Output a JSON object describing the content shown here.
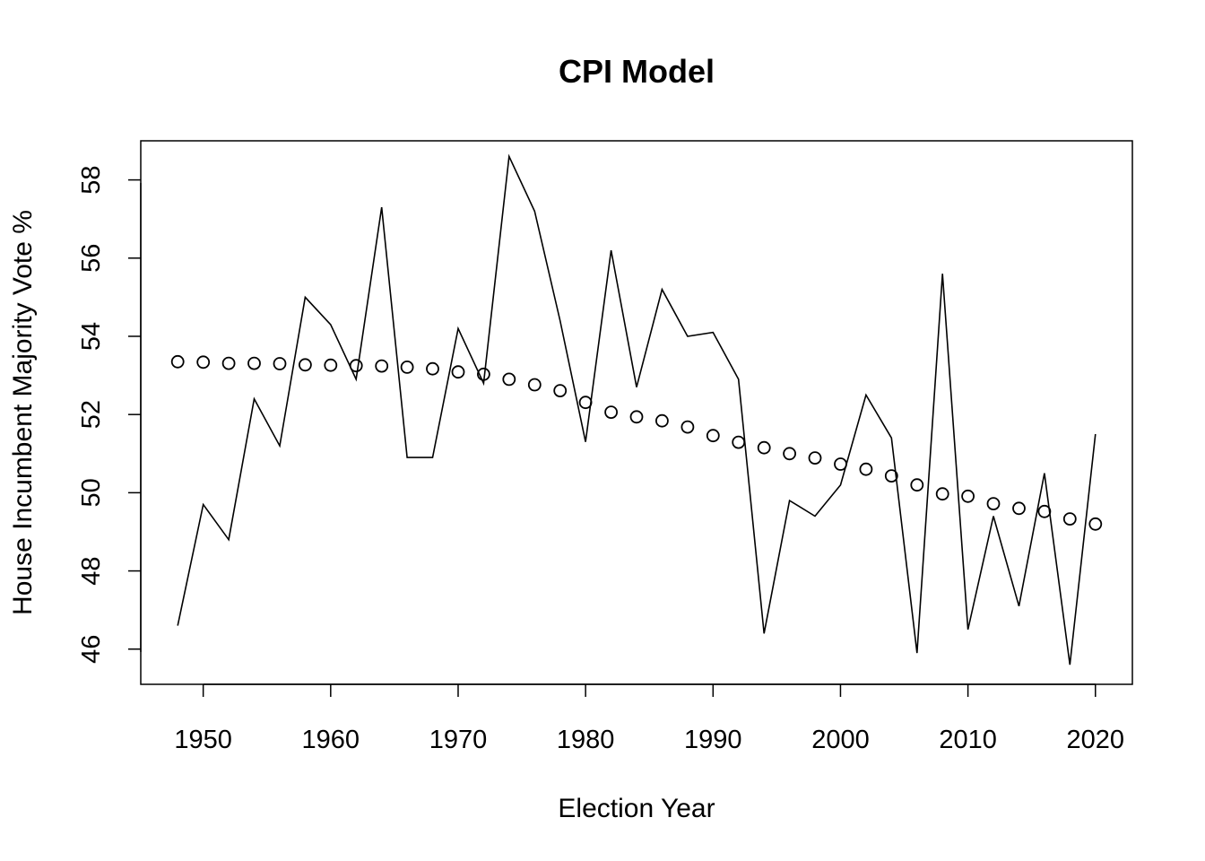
{
  "chart_data": {
    "type": "line",
    "title": "CPI Model",
    "xlabel": "Election Year",
    "ylabel": "House Incumbent Majority Vote %",
    "xlim": [
      1945.1,
      2022.9
    ],
    "ylim": [
      45.1,
      59.0
    ],
    "x_ticks": [
      1950,
      1960,
      1970,
      1980,
      1990,
      2000,
      2010,
      2020
    ],
    "y_ticks": [
      46,
      48,
      50,
      52,
      54,
      56,
      58
    ],
    "grid": false,
    "legend": "none",
    "x": [
      1948,
      1950,
      1952,
      1954,
      1956,
      1958,
      1960,
      1962,
      1964,
      1966,
      1968,
      1970,
      1972,
      1974,
      1976,
      1978,
      1980,
      1982,
      1984,
      1986,
      1988,
      1990,
      1992,
      1994,
      1996,
      1998,
      2000,
      2002,
      2004,
      2006,
      2008,
      2010,
      2012,
      2014,
      2016,
      2018,
      2020
    ],
    "series": [
      {
        "style": "line",
        "color": "#000000",
        "values": [
          46.6,
          49.7,
          48.8,
          52.4,
          51.2,
          55.0,
          54.3,
          52.9,
          57.3,
          50.9,
          50.9,
          54.2,
          52.8,
          58.6,
          57.2,
          54.4,
          51.3,
          56.2,
          52.7,
          55.2,
          54.0,
          54.1,
          52.9,
          46.4,
          49.8,
          49.4,
          50.2,
          52.5,
          51.4,
          45.9,
          55.6,
          46.5,
          49.4,
          47.1,
          50.5,
          45.6,
          51.5
        ]
      },
      {
        "style": "points",
        "color": "#000000",
        "values": [
          53.35,
          53.34,
          53.31,
          53.31,
          53.3,
          53.27,
          53.26,
          53.25,
          53.24,
          53.21,
          53.17,
          53.09,
          53.03,
          52.9,
          52.76,
          52.61,
          52.31,
          52.06,
          51.94,
          51.84,
          51.68,
          51.46,
          51.29,
          51.15,
          51.0,
          50.89,
          50.73,
          50.6,
          50.43,
          50.2,
          49.97,
          49.91,
          49.72,
          49.6,
          49.52,
          49.33,
          49.2
        ]
      }
    ]
  }
}
